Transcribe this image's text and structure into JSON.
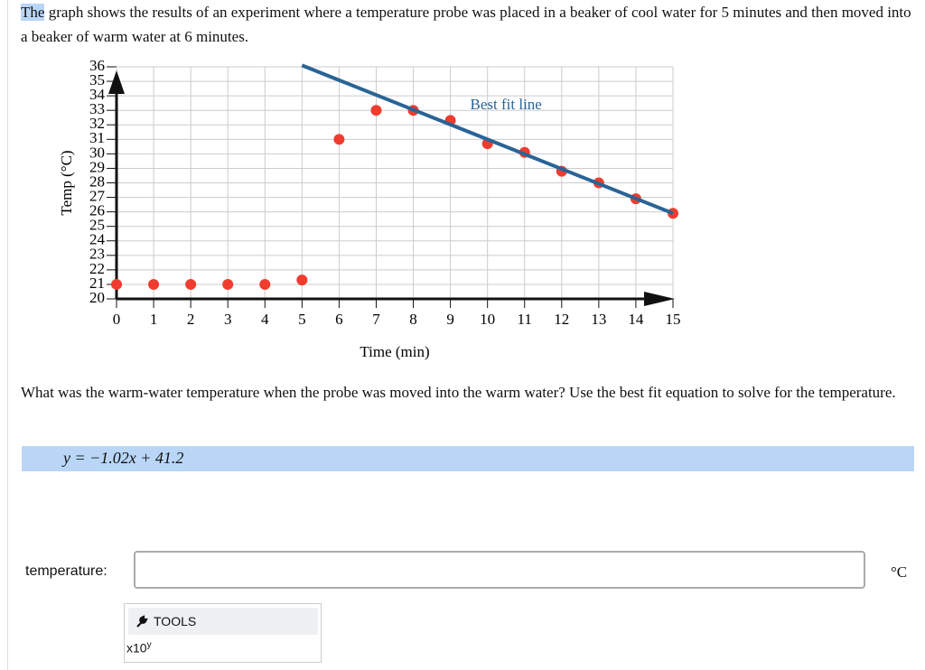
{
  "intro": {
    "highlight": "The",
    "text": "graph shows the results of an experiment where a temperature probe was placed in a beaker of cool water for 5 minutes and then moved into a beaker of warm water at 6 minutes."
  },
  "chart_data": {
    "type": "scatter",
    "x_label": "Time (min)",
    "y_label": "Temp (°C)",
    "x": [
      0,
      1,
      2,
      3,
      4,
      5,
      6,
      7,
      8,
      9,
      10,
      11,
      12,
      13,
      14,
      15
    ],
    "series": [
      {
        "color": "#f03c2e",
        "values": [
          21,
          21,
          21,
          21,
          21,
          21.3,
          31,
          33,
          33,
          32.3,
          30.7,
          30.1,
          28.8,
          28,
          26.9,
          25.9
        ]
      },
      {
        "name": "Best fit line",
        "type": "line",
        "color": "#2a6496",
        "x": [
          5,
          15
        ],
        "values": [
          36.1,
          25.9
        ]
      }
    ],
    "xlim": [
      0,
      15
    ],
    "xticks": [
      0,
      1,
      2,
      3,
      4,
      5,
      6,
      7,
      8,
      9,
      10,
      11,
      12,
      13,
      14,
      15
    ],
    "ylim": [
      20,
      36
    ],
    "yticks": [
      20,
      21,
      22,
      23,
      24,
      25,
      26,
      27,
      28,
      29,
      30,
      31,
      32,
      33,
      34,
      35,
      36
    ],
    "grid": true
  },
  "question": "What was the warm-water temperature when the probe was moved into the warm water? Use the best fit equation to solve for the temperature.",
  "equation": "y = −1.02x + 41.2",
  "answer": {
    "label": "temperature:",
    "unit": "°C"
  },
  "tools": {
    "button": "TOOLS",
    "sci_base": "x10",
    "sci_exp": "y"
  }
}
